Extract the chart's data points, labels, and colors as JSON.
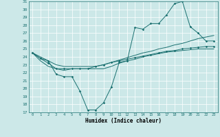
{
  "xlabel": "Humidex (Indice chaleur)",
  "ylabel": "",
  "bg_color": "#cce8e8",
  "line_color": "#1a7070",
  "grid_color": "#ffffff",
  "xlim": [
    -0.5,
    23.5
  ],
  "ylim": [
    17,
    31
  ],
  "xticks": [
    0,
    1,
    2,
    3,
    4,
    5,
    6,
    7,
    8,
    9,
    10,
    11,
    12,
    13,
    14,
    15,
    16,
    17,
    18,
    19,
    20,
    21,
    22,
    23
  ],
  "yticks": [
    17,
    18,
    19,
    20,
    21,
    22,
    23,
    24,
    25,
    26,
    27,
    28,
    29,
    30,
    31
  ],
  "series": [
    [
      24.5,
      23.8,
      23.5,
      21.8,
      21.5,
      21.5,
      19.7,
      17.3,
      17.3,
      18.2,
      20.2,
      23.3,
      23.5,
      27.7,
      27.5,
      28.2,
      28.2,
      29.3,
      30.7,
      31.0,
      27.8,
      27.0,
      26.0,
      26.0
    ],
    [
      24.5,
      23.8,
      23.2,
      22.5,
      22.5,
      22.5,
      22.5,
      22.5,
      22.8,
      23.0,
      23.3,
      23.5,
      23.7,
      23.9,
      24.1,
      24.3,
      24.5,
      24.7,
      24.8,
      25.0,
      25.1,
      25.2,
      25.3,
      25.3
    ],
    [
      24.5,
      23.5,
      22.8,
      22.5,
      22.3,
      22.5,
      22.5,
      22.5,
      22.5,
      22.5,
      22.8,
      23.2,
      23.5,
      23.7,
      24.0,
      24.2,
      24.4,
      24.6,
      24.7,
      24.8,
      24.9,
      25.0,
      25.0,
      25.0
    ],
    [
      24.5,
      24.0,
      23.5,
      23.0,
      22.8,
      22.8,
      22.8,
      22.8,
      22.8,
      23.0,
      23.3,
      23.6,
      23.9,
      24.2,
      24.5,
      24.7,
      25.0,
      25.2,
      25.5,
      25.7,
      26.0,
      26.3,
      26.5,
      26.7
    ]
  ],
  "markers": [
    true,
    true,
    false,
    false
  ]
}
